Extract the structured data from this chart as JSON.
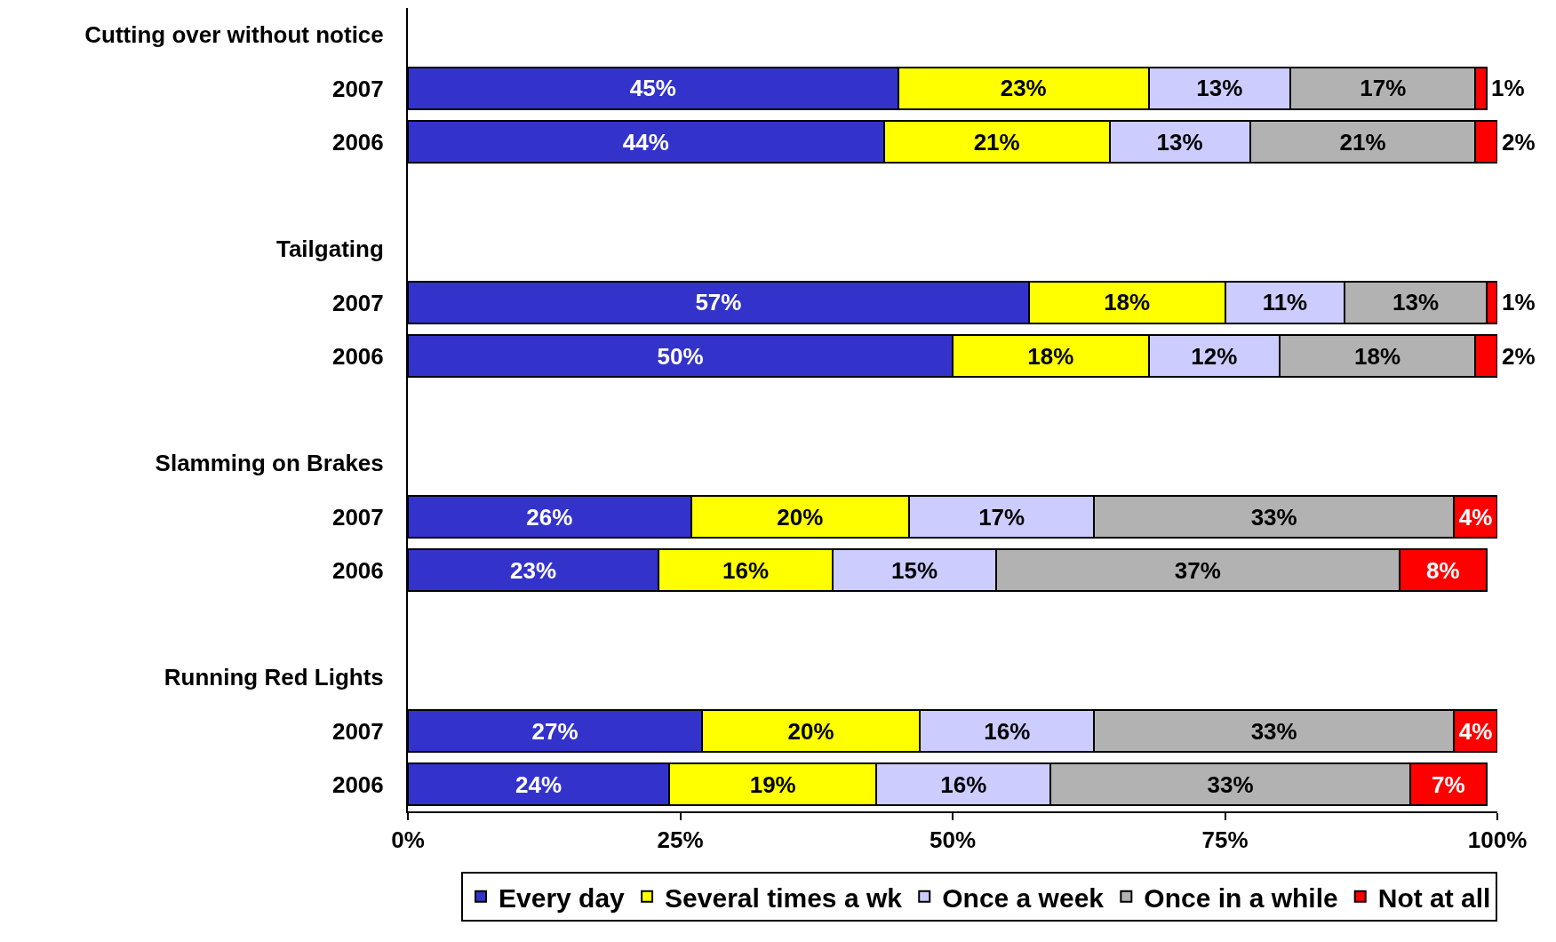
{
  "chart_data": {
    "type": "bar",
    "orientation": "horizontal",
    "stacked": true,
    "categories": [
      "Cutting over without notice",
      "2007",
      "2006",
      null,
      "Tailgating",
      "2007",
      "2006",
      null,
      "Slamming on Brakes",
      "2007",
      "2006",
      null,
      "Running Red Lights",
      "2007",
      "2006"
    ],
    "series": [
      {
        "name": "Every day",
        "color": "#3333cc",
        "values": [
          null,
          45,
          43.7,
          null,
          null,
          57,
          50,
          null,
          null,
          26,
          23,
          null,
          null,
          27,
          24
        ],
        "value_labels": [
          null,
          "45%",
          "44%",
          null,
          null,
          "57%",
          "50%",
          null,
          null,
          "26%",
          "23%",
          null,
          null,
          "27%",
          "24%"
        ]
      },
      {
        "name": "Several times a wk",
        "color": "#ffff00",
        "values": [
          null,
          23,
          20.7,
          null,
          null,
          18,
          18,
          null,
          null,
          20,
          16,
          null,
          null,
          20,
          19
        ],
        "value_labels": [
          null,
          "23%",
          "21%",
          null,
          null,
          "18%",
          "18%",
          null,
          null,
          "20%",
          "16%",
          null,
          null,
          "20%",
          "19%"
        ]
      },
      {
        "name": "Once a week",
        "color": "#ccccff",
        "values": [
          null,
          13,
          12.9,
          null,
          null,
          11,
          12,
          null,
          null,
          17,
          15,
          null,
          null,
          16,
          16
        ],
        "value_labels": [
          null,
          "13%",
          "13%",
          null,
          null,
          "11%",
          "12%",
          null,
          null,
          "17%",
          "15%",
          null,
          null,
          "16%",
          "16%"
        ]
      },
      {
        "name": "Once in a while",
        "color": "#b2b2b2",
        "values": [
          null,
          17,
          20.7,
          null,
          null,
          13,
          18,
          null,
          null,
          33,
          37,
          null,
          null,
          33,
          33
        ],
        "value_labels": [
          null,
          "17%",
          "21%",
          null,
          null,
          "13%",
          "18%",
          null,
          null,
          "33%",
          "37%",
          null,
          null,
          "33%",
          "33%"
        ]
      },
      {
        "name": "Not at all",
        "color": "#ff0000",
        "values": [
          null,
          1,
          2,
          null,
          null,
          1,
          2,
          null,
          null,
          4,
          8,
          null,
          null,
          4,
          7
        ],
        "value_labels": [
          null,
          "1%",
          "2%",
          null,
          null,
          "1%",
          "2%",
          null,
          null,
          "4%",
          "8%",
          null,
          null,
          "4%",
          "7%"
        ]
      }
    ],
    "xlim": [
      0,
      100
    ],
    "xticks": [
      {
        "value": 0,
        "label": "0%"
      },
      {
        "value": 25,
        "label": "25%"
      },
      {
        "value": 50,
        "label": "50%"
      },
      {
        "value": 75,
        "label": "75%"
      },
      {
        "value": 100,
        "label": "100%"
      }
    ],
    "grid": false,
    "legend": "bottom"
  }
}
